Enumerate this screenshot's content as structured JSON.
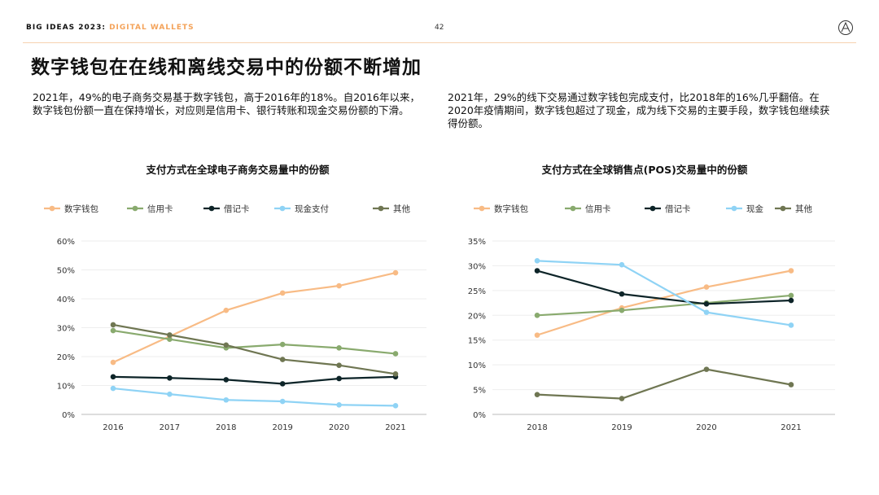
{
  "header": {
    "brand": "BIG IDEAS 2023: ",
    "section": "DIGITAL WALLETS",
    "page_number": "42"
  },
  "title": "数字钱包在在线和离线交易中的份额不断增加",
  "paragraphs": {
    "left": "2021年，49%的电子商务交易基于数字钱包，高于2016年的18%。自2016年以来，数字钱包份额一直在保持增长，对应则是信用卡、银行转账和现金交易份额的下滑。",
    "right": "2021年，29%的线下交易通过数字钱包完成支付，比2018年的16%几乎翻倍。在2020年疫情期间，数字钱包超过了现金，成为线下交易的主要手段，数字钱包继续获得份额。"
  },
  "colors": {
    "accent": "#f4a35a",
    "digital_wallet": "#f8bb85",
    "credit_card": "#89aa6e",
    "debit_card": "#0d2428",
    "cash": "#8fd3f5",
    "other": "#6f7652"
  },
  "chart_data": [
    {
      "type": "line",
      "title": "支付方式在全球电子商务交易量中的份额",
      "x": [
        "2016",
        "2017",
        "2018",
        "2019",
        "2020",
        "2021"
      ],
      "ylim": [
        0,
        60
      ],
      "yticks": [
        "0%",
        "10%",
        "20%",
        "30%",
        "40%",
        "50%",
        "60%"
      ],
      "ytick_values": [
        0,
        10,
        20,
        30,
        40,
        50,
        60
      ],
      "xlabel": "",
      "ylabel": "",
      "grid": true,
      "legend": "top",
      "series": [
        {
          "name": "数字钱包",
          "color": "#f8bb85",
          "values": [
            18,
            27,
            36,
            42,
            44.5,
            49
          ]
        },
        {
          "name": "信用卡",
          "color": "#89aa6e",
          "values": [
            29,
            26,
            23,
            24.2,
            23,
            21
          ]
        },
        {
          "name": "借记卡",
          "color": "#0d2428",
          "values": [
            13,
            12.6,
            12,
            10.6,
            12.4,
            13
          ]
        },
        {
          "name": "现金支付",
          "color": "#8fd3f5",
          "values": [
            9,
            7,
            5,
            4.5,
            3.3,
            3
          ]
        },
        {
          "name": "其他",
          "color": "#6f7652",
          "values": [
            31,
            27.5,
            24,
            19,
            17,
            14
          ]
        }
      ]
    },
    {
      "type": "line",
      "title": "支付方式在全球销售点(POS)交易量中的份额",
      "x": [
        "2018",
        "2019",
        "2020",
        "2021"
      ],
      "ylim": [
        0,
        35
      ],
      "yticks": [
        "0%",
        "5%",
        "10%",
        "15%",
        "20%",
        "25%",
        "30%",
        "35%"
      ],
      "ytick_values": [
        0,
        5,
        10,
        15,
        20,
        25,
        30,
        35
      ],
      "xlabel": "",
      "ylabel": "",
      "grid": true,
      "legend": "top",
      "series": [
        {
          "name": "数字钱包",
          "color": "#f8bb85",
          "values": [
            16,
            21.5,
            25.7,
            29
          ]
        },
        {
          "name": "信用卡",
          "color": "#89aa6e",
          "values": [
            20,
            21,
            22.5,
            24
          ]
        },
        {
          "name": "借记卡",
          "color": "#0d2428",
          "values": [
            29,
            24.3,
            22.3,
            23
          ]
        },
        {
          "name": "现金",
          "color": "#8fd3f5",
          "values": [
            31,
            30.2,
            20.6,
            18
          ]
        },
        {
          "name": "其他",
          "color": "#6f7652",
          "values": [
            4,
            3.2,
            9.1,
            6
          ]
        }
      ]
    }
  ]
}
